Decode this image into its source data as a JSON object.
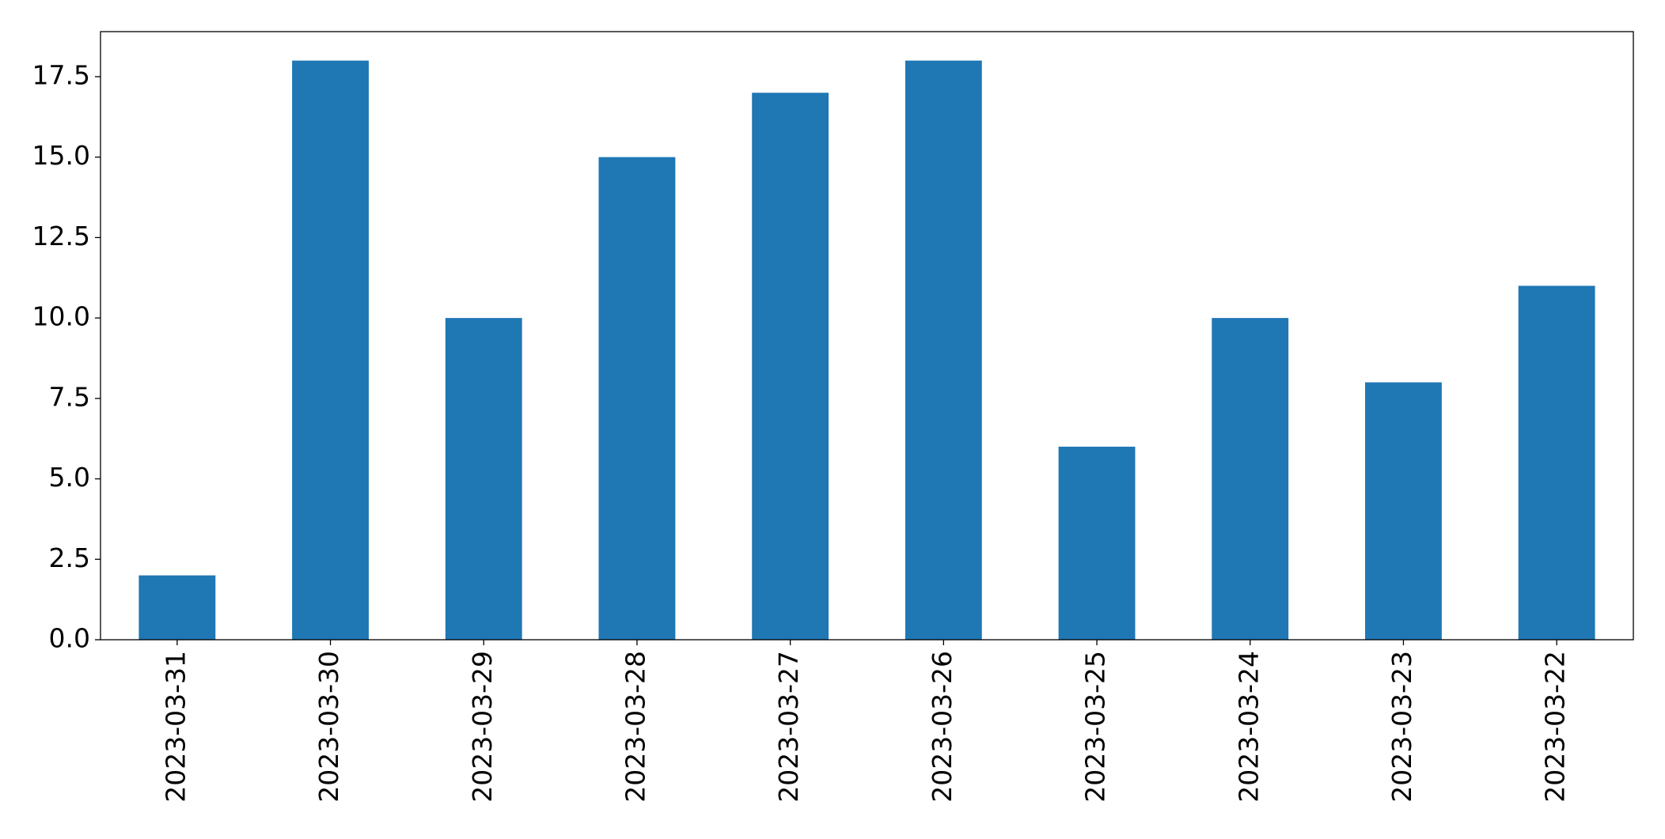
{
  "chart_data": {
    "type": "bar",
    "categories": [
      "2023-03-31",
      "2023-03-30",
      "2023-03-29",
      "2023-03-28",
      "2023-03-27",
      "2023-03-26",
      "2023-03-25",
      "2023-03-24",
      "2023-03-23",
      "2023-03-22"
    ],
    "values": [
      2,
      18,
      10,
      15,
      17,
      18,
      6,
      10,
      8,
      11
    ],
    "color": "#1f77b4",
    "ylim": [
      0,
      18.9
    ],
    "yticks": [
      {
        "value": 0,
        "label": "0.0"
      },
      2.5,
      {
        "value": 5,
        "label": "5.0"
      },
      7.5,
      {
        "value": 10,
        "label": "10.0"
      },
      12.5,
      {
        "value": 15,
        "label": "15.0"
      },
      17.5
    ],
    "grid": false
  }
}
